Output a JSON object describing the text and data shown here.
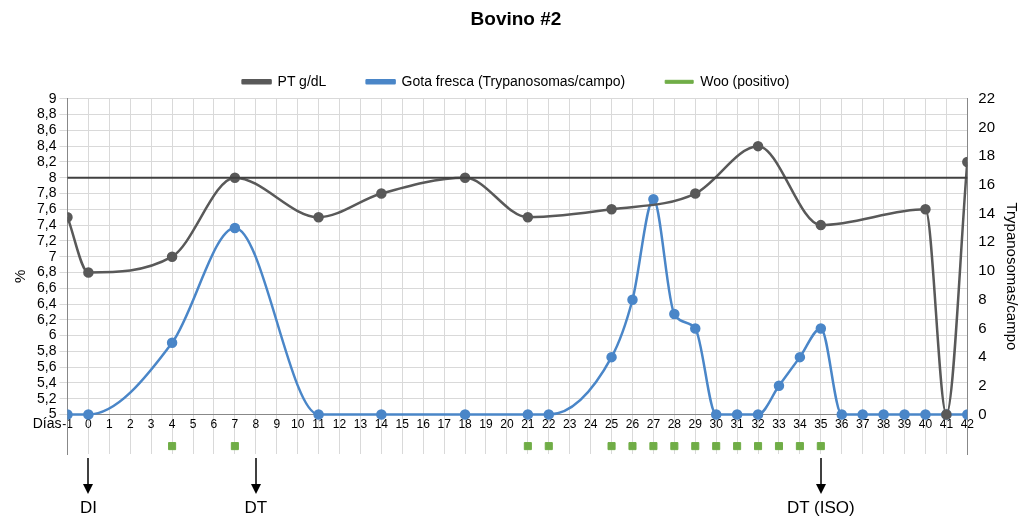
{
  "chart_data": {
    "type": "line",
    "title": "Bovino #2",
    "xlabel": "Días",
    "ylabel": "%",
    "y2label": "Trypanosomas/campo",
    "xlim": [
      -1,
      42
    ],
    "xticks": [
      -1,
      0,
      1,
      2,
      3,
      4,
      5,
      6,
      7,
      8,
      9,
      10,
      11,
      12,
      13,
      14,
      15,
      16,
      17,
      18,
      19,
      20,
      21,
      22,
      23,
      24,
      25,
      26,
      27,
      28,
      29,
      30,
      31,
      32,
      33,
      34,
      35,
      36,
      37,
      38,
      39,
      40,
      41,
      42
    ],
    "ylim": [
      4.5,
      9
    ],
    "yticks": [
      5,
      {
        "value": 5.2,
        "label": "5,2"
      },
      {
        "value": 5.4,
        "label": "5,4"
      },
      {
        "value": 5.6,
        "label": "5,6"
      },
      {
        "value": 5.8,
        "label": "5,8"
      },
      6,
      {
        "value": 6.2,
        "label": "6,2"
      },
      {
        "value": 6.4,
        "label": "6,4"
      },
      {
        "value": 6.6,
        "label": "6,6"
      },
      {
        "value": 6.8,
        "label": "6,8"
      },
      7,
      {
        "value": 7.2,
        "label": "7,2"
      },
      {
        "value": 7.4,
        "label": "7,4"
      },
      {
        "value": 7.6,
        "label": "7,6"
      },
      {
        "value": 7.8,
        "label": "7,8"
      },
      8,
      {
        "value": 8.2,
        "label": "8,2"
      },
      {
        "value": 8.4,
        "label": "8,4"
      },
      {
        "value": 8.6,
        "label": "8,6"
      },
      {
        "value": 8.8,
        "label": "8,8"
      },
      9
    ],
    "y2lim": [
      -2.75,
      22
    ],
    "y2ticks": [
      0,
      2,
      4,
      6,
      8,
      10,
      12,
      14,
      16,
      18,
      20,
      22
    ],
    "grid": true,
    "legend": "top",
    "marker": "circle",
    "series": [
      {
        "name": "PT g/dL",
        "color": "#595959",
        "x": [
          -1,
          0,
          4,
          7,
          11,
          14,
          18,
          21,
          25,
          29,
          32,
          35,
          40,
          41,
          42
        ],
        "values": [
          7.5,
          6.8,
          7.0,
          8.0,
          7.5,
          7.8,
          8.0,
          7.5,
          7.6,
          7.8,
          8.4,
          7.4,
          7.6,
          5.0,
          8.2
        ]
      },
      {
        "name": "Gota fresca (Trypanosomas/campo)",
        "type": "line",
        "axis": "y2",
        "color": "#4a86c8",
        "x": [
          -1,
          0,
          4,
          7,
          11,
          14,
          18,
          21,
          22,
          25,
          26,
          27,
          28,
          29,
          30,
          31,
          32,
          33,
          34,
          35,
          36,
          37,
          38,
          39,
          40,
          41,
          42
        ],
        "values": [
          0,
          0,
          5,
          13,
          0,
          0,
          0,
          0,
          0,
          4,
          8,
          15,
          7,
          6,
          0,
          0,
          0,
          2,
          4,
          6,
          0,
          0,
          0,
          0,
          0,
          0,
          0
        ]
      },
      {
        "name": "Woo (positivo)",
        "type": "scatter",
        "marker": "square",
        "color": "#70ad47",
        "x": [
          4,
          7,
          21,
          22,
          25,
          26,
          27,
          28,
          29,
          30,
          31,
          32,
          33,
          34,
          35
        ],
        "values": [
          4.6,
          4.6,
          4.6,
          4.6,
          4.6,
          4.6,
          4.6,
          4.6,
          4.6,
          4.6,
          4.6,
          4.6,
          4.6,
          4.6,
          4.6
        ]
      }
    ],
    "ref_lines": [
      {
        "axis": "y",
        "value": 8,
        "color": "#404040"
      }
    ],
    "annotations": [
      "DI",
      "DT",
      "DT (ISO)"
    ]
  }
}
